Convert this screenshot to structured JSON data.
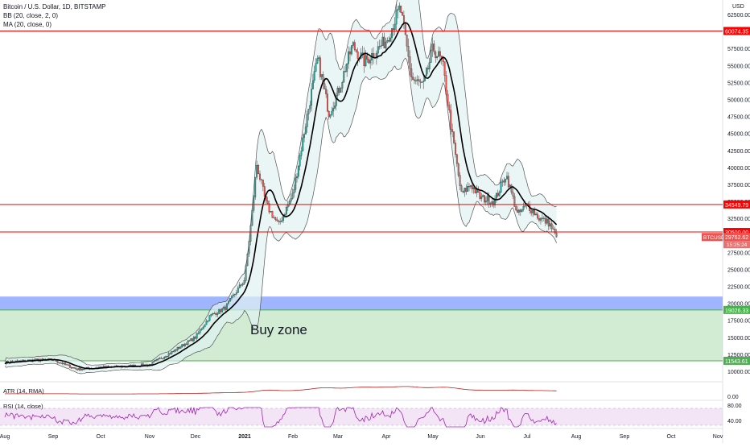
{
  "legend": {
    "title": "Bitcoin / U.S. Dollar, 1D, BITSTAMP",
    "bb": "BB (20, close, 2, 0)",
    "ma": "MA (20, close, 0)"
  },
  "currency": "USD",
  "annotation": "Buy zone",
  "atr_legend": "ATR (14, RMA)",
  "rsi_legend": "RSI (14, close)",
  "colors": {
    "up": "#26a69a",
    "down": "#ef5350",
    "line": "#ff0000",
    "bb_fill": "#e0f2f1",
    "zone_green": "#b2dfb4",
    "zone_blue": "#8fa8ff",
    "rsi": "#9c27b0",
    "atr": "#b71c1c",
    "ma": "#000000"
  },
  "chart_data": {
    "type": "candlestick",
    "symbol": "BTCUSD",
    "price_axis": {
      "ticks": [
        "62500.00",
        "60000.00",
        "57500.00",
        "55000.00",
        "52500.00",
        "50000.00",
        "47500.00",
        "45000.00",
        "42500.00",
        "40000.00",
        "37500.00",
        "35000.00",
        "32500.00",
        "30000.00",
        "27500.00",
        "25000.00",
        "22500.00",
        "20000.00",
        "17500.00",
        "15000.00",
        "12500.00",
        "10000.00"
      ],
      "ylim": [
        9000,
        64500
      ]
    },
    "x_ticks": [
      "Aug",
      "Sep",
      "Oct",
      "Nov",
      "Dec",
      "2021",
      "Feb",
      "Mar",
      "Apr",
      "May",
      "Jun",
      "Jul",
      "Aug",
      "Sep",
      "Oct",
      "Nov"
    ],
    "horizontal_levels": [
      {
        "label": "60074.35",
        "value": 60074.35
      },
      {
        "label": "34549.79",
        "value": 34549.79
      },
      {
        "label": "30500.00",
        "value": 30500.0
      }
    ],
    "zones": [
      {
        "name": "blue",
        "from": 19026.33,
        "to": 21000
      },
      {
        "name": "green",
        "from": 11543.61,
        "to": 19026.33,
        "label_top": "19026.33",
        "label_bottom": "11543.61"
      }
    ],
    "last_price": {
      "symbol": "BTCUSD",
      "value": "29762.62",
      "countdown": "15:25:24"
    },
    "close_series_month_anchors": [
      {
        "t": 0,
        "v": 11300
      },
      {
        "t": 0.5,
        "v": 11600
      },
      {
        "t": 1,
        "v": 11700
      },
      {
        "t": 1.5,
        "v": 10300
      },
      {
        "t": 2,
        "v": 10600
      },
      {
        "t": 2.5,
        "v": 10700
      },
      {
        "t": 3,
        "v": 11000
      },
      {
        "t": 3.5,
        "v": 12900
      },
      {
        "t": 4,
        "v": 15000
      },
      {
        "t": 4.3,
        "v": 18200
      },
      {
        "t": 4.6,
        "v": 19300
      },
      {
        "t": 5,
        "v": 23500
      },
      {
        "t": 5.15,
        "v": 33000
      },
      {
        "t": 5.25,
        "v": 40500
      },
      {
        "t": 5.45,
        "v": 34500
      },
      {
        "t": 5.7,
        "v": 31500
      },
      {
        "t": 6,
        "v": 36000
      },
      {
        "t": 6.3,
        "v": 47000
      },
      {
        "t": 6.55,
        "v": 56000
      },
      {
        "t": 6.8,
        "v": 48000
      },
      {
        "t": 7,
        "v": 51000
      },
      {
        "t": 7.3,
        "v": 58000
      },
      {
        "t": 7.55,
        "v": 55500
      },
      {
        "t": 8,
        "v": 58700
      },
      {
        "t": 8.3,
        "v": 63500
      },
      {
        "t": 8.55,
        "v": 53000
      },
      {
        "t": 8.8,
        "v": 52000
      },
      {
        "t": 9,
        "v": 57500
      },
      {
        "t": 9.2,
        "v": 55500
      },
      {
        "t": 9.4,
        "v": 45000
      },
      {
        "t": 9.6,
        "v": 36000
      },
      {
        "t": 9.8,
        "v": 37500
      },
      {
        "t": 10,
        "v": 35500
      },
      {
        "t": 10.3,
        "v": 35000
      },
      {
        "t": 10.55,
        "v": 39000
      },
      {
        "t": 10.8,
        "v": 33000
      },
      {
        "t": 11,
        "v": 34500
      },
      {
        "t": 11.25,
        "v": 32500
      },
      {
        "t": 11.45,
        "v": 31800
      },
      {
        "t": 11.6,
        "v": 29762.62
      }
    ],
    "atr_axis": {
      "label": "0.00"
    },
    "rsi_axis": {
      "ticks": [
        "80.00",
        "40.00"
      ]
    }
  }
}
